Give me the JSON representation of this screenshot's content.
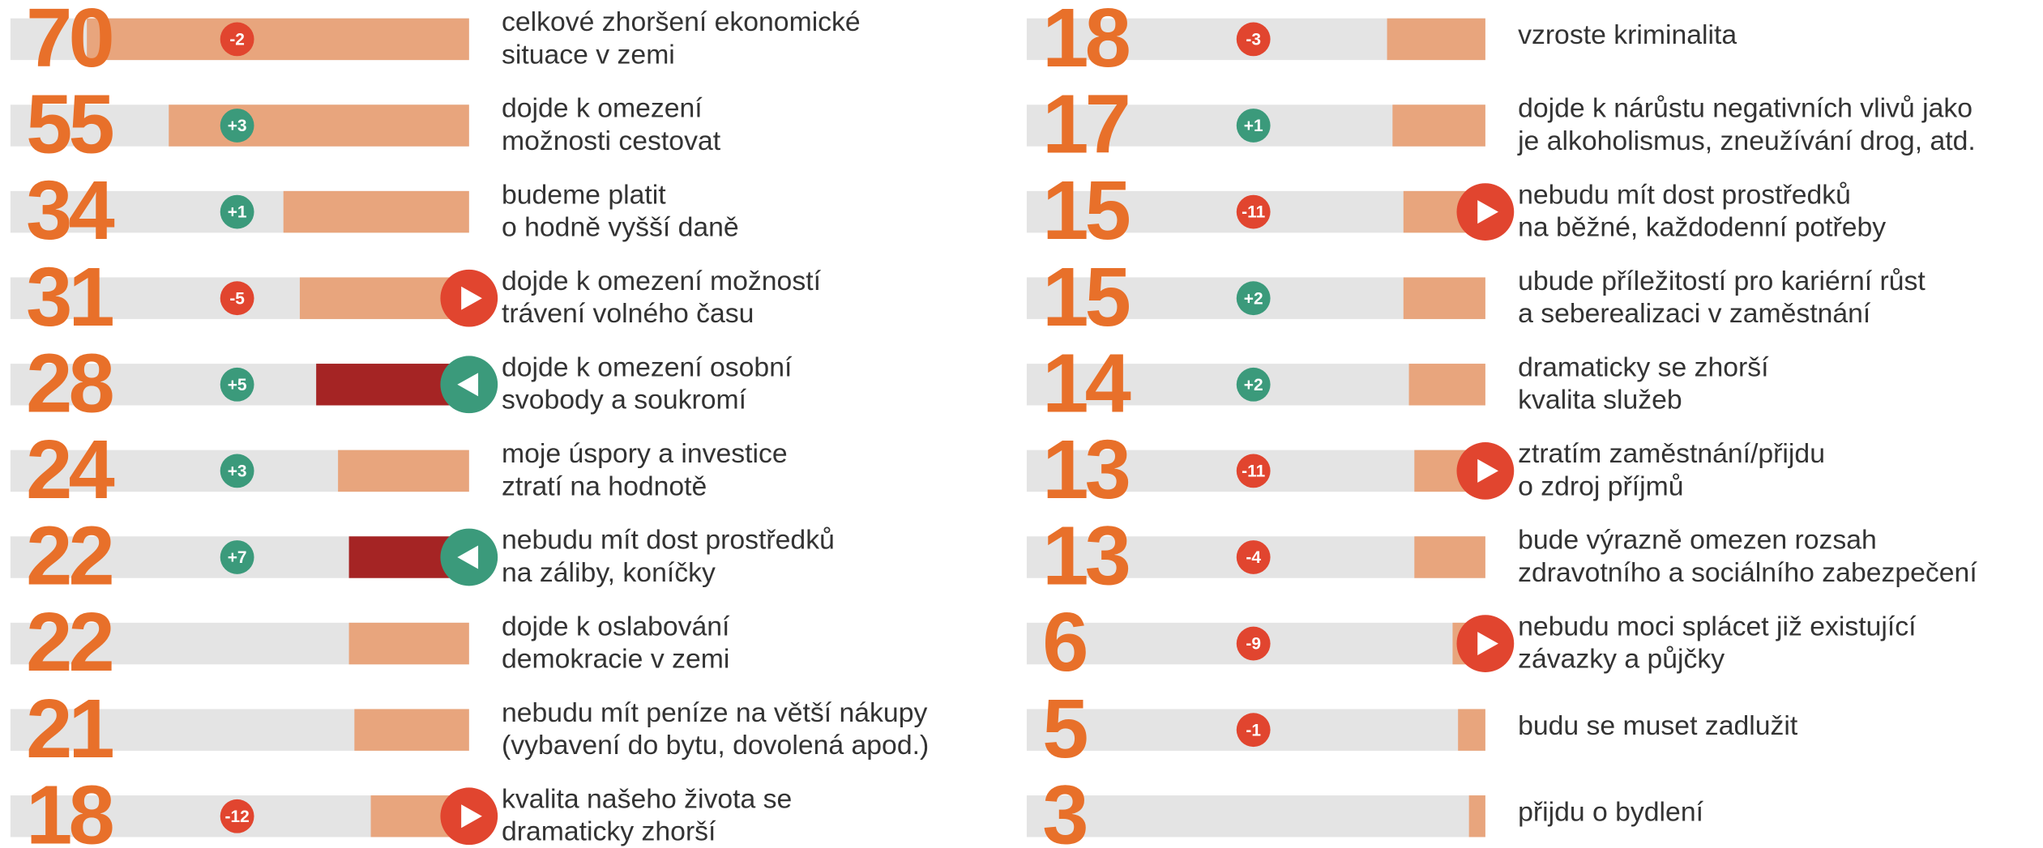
{
  "chart_data": [
    {
      "type": "bar",
      "categories": [
        [
          "celkové zhoršení ekonomické",
          "situace v zemi"
        ],
        [
          "dojde k omezení",
          "možnosti cestovat"
        ],
        [
          "budeme platit",
          "o hodně vyšší daně"
        ],
        [
          "dojde k omezení možností",
          "trávení volného času"
        ],
        [
          "dojde k omezení osobní",
          "svobody a soukromí"
        ],
        [
          "moje úspory a investice",
          "ztratí na hodnotě"
        ],
        [
          "nebudu mít dost prostředků",
          "na záliby, koníčky"
        ],
        [
          "dojde k oslabování",
          "demokracie v zemi"
        ],
        [
          "nebudu mít peníze na větší nákupy",
          "(vybavení do bytu, dovolená apod.)"
        ],
        [
          "kvalita našeho života se",
          "dramaticky zhorší"
        ]
      ],
      "values": [
        70,
        55,
        34,
        31,
        28,
        24,
        22,
        22,
        21,
        18
      ],
      "changes": [
        -2,
        3,
        1,
        -5,
        5,
        3,
        7,
        null,
        null,
        -12
      ],
      "change_labels": [
        "-2",
        "+3",
        "+1",
        "-5",
        "+5",
        "+3",
        "+7",
        null,
        null,
        "-12"
      ],
      "trend": [
        null,
        null,
        null,
        "down",
        "up",
        null,
        "up",
        null,
        null,
        "down"
      ],
      "xlim": [
        0,
        84
      ]
    },
    {
      "type": "bar",
      "categories": [
        [
          "vzroste kriminalita"
        ],
        [
          "dojde k nárůstu negativních vlivů jako",
          "je alkoholismus, zneužívání drog, atd."
        ],
        [
          "nebudu mít dost prostředků",
          "na běžné, každodenní potřeby"
        ],
        [
          "ubude příležitostí pro kariérní růst",
          "a seberealizaci v zaměstnání"
        ],
        [
          "dramaticky se zhorší",
          "kvalita služeb"
        ],
        [
          "ztratím zaměstnání/přijdu",
          "o zdroj příjmů"
        ],
        [
          "bude výrazně omezen rozsah",
          "zdravotního a sociálního zabezpečení"
        ],
        [
          "nebudu moci splácet již existující",
          "závazky a půjčky"
        ],
        [
          "budu se muset zadlužit"
        ],
        [
          "přijdu o bydlení"
        ]
      ],
      "values": [
        18,
        17,
        15,
        15,
        14,
        13,
        13,
        6,
        5,
        3
      ],
      "changes": [
        -3,
        1,
        -11,
        2,
        2,
        -11,
        -4,
        -9,
        -1,
        null
      ],
      "change_labels": [
        "-3",
        "+1",
        "-11",
        "+2",
        "+2",
        "-11",
        "-4",
        "-9",
        "-1",
        null
      ],
      "trend": [
        null,
        null,
        "down",
        null,
        null,
        "down",
        null,
        "down",
        null,
        null
      ],
      "xlim": [
        0,
        84
      ]
    }
  ],
  "colors": {
    "number": "#e8702a",
    "track": "#e4e4e4",
    "bar": "#e8a57d",
    "bar_up": "#a52424",
    "positive": "#3b9a7b",
    "negative": "#e1452f"
  }
}
